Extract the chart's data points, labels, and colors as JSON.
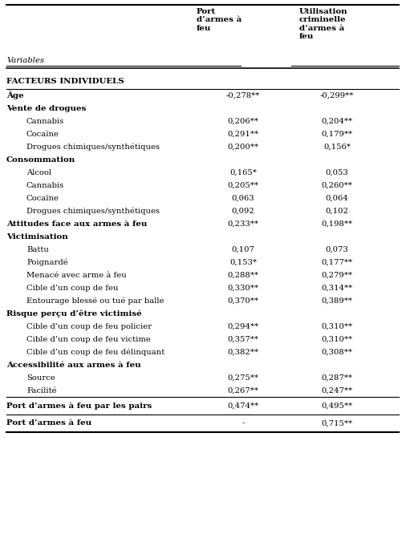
{
  "col1_header": "Port\nd’armes à\nfeu",
  "col2_header": "Utilisation\ncriminelle\nd’armes à\nfeu",
  "var_label": "Variables",
  "bg_color": "#ffffff",
  "text_color": "#000000",
  "line_color": "#000000",
  "rows": [
    {
      "label": "FACTEURS INDIVIDUELS",
      "col1": "",
      "col2": "",
      "style": "section_bold",
      "indent": 0
    },
    {
      "label": "Âge",
      "col1": "-0,278**",
      "col2": "-0,299**",
      "style": "bold",
      "indent": 0
    },
    {
      "label": "Vente de drogues",
      "col1": "",
      "col2": "",
      "style": "bold",
      "indent": 0
    },
    {
      "label": "Cannabis",
      "col1": "0,206**",
      "col2": "0,204**",
      "style": "normal",
      "indent": 1
    },
    {
      "label": "Cocaïne",
      "col1": "0,291**",
      "col2": "0,179**",
      "style": "normal",
      "indent": 1
    },
    {
      "label": "Drogues chimiques/synthétiques",
      "col1": "0,200**",
      "col2": "0,156*",
      "style": "normal",
      "indent": 1
    },
    {
      "label": "Consommation",
      "col1": "",
      "col2": "",
      "style": "bold",
      "indent": 0
    },
    {
      "label": "Alcool",
      "col1": "0,165*",
      "col2": "0,053",
      "style": "normal",
      "indent": 1
    },
    {
      "label": "Cannabis",
      "col1": "0,205**",
      "col2": "0,260**",
      "style": "normal",
      "indent": 1
    },
    {
      "label": "Cocaïne",
      "col1": "0,063",
      "col2": "0,064",
      "style": "normal",
      "indent": 1
    },
    {
      "label": "Drogues chimiques/synthétiques",
      "col1": "0,092",
      "col2": "0,102",
      "style": "normal",
      "indent": 1
    },
    {
      "label": "Attitudes face aux armes à feu",
      "col1": "0,233**",
      "col2": "0,198**",
      "style": "bold",
      "indent": 0
    },
    {
      "label": "Victimisation",
      "col1": "",
      "col2": "",
      "style": "bold",
      "indent": 0
    },
    {
      "label": "Battu",
      "col1": "0,107",
      "col2": "0,073",
      "style": "normal",
      "indent": 1
    },
    {
      "label": "Poignardé",
      "col1": "0,153*",
      "col2": "0,177**",
      "style": "normal",
      "indent": 1
    },
    {
      "label": "Menacé avec arme à feu",
      "col1": "0,288**",
      "col2": "0,279**",
      "style": "normal",
      "indent": 1
    },
    {
      "label": "Cible d’un coup de feu",
      "col1": "0,330**",
      "col2": "0,314**",
      "style": "normal",
      "indent": 1
    },
    {
      "label": "Entourage blessé ou tué par balle",
      "col1": "0,370**",
      "col2": "0,389**",
      "style": "normal",
      "indent": 1
    },
    {
      "label": "Risque perçu d’être victimisé",
      "col1": "",
      "col2": "",
      "style": "bold",
      "indent": 0
    },
    {
      "label": "Cible d’un coup de feu policier",
      "col1": "0,294**",
      "col2": "0,310**",
      "style": "normal",
      "indent": 1
    },
    {
      "label": "Cible d’un coup de feu victime",
      "col1": "0,357**",
      "col2": "0,310**",
      "style": "normal",
      "indent": 1
    },
    {
      "label": "Cible d’un coup de feu délinquant",
      "col1": "0,382**",
      "col2": "0,308**",
      "style": "normal",
      "indent": 1
    },
    {
      "label": "Accessibilité aux armes à feu",
      "col1": "",
      "col2": "",
      "style": "bold",
      "indent": 0
    },
    {
      "label": "Source",
      "col1": "0,275**",
      "col2": "0,287**",
      "style": "normal",
      "indent": 1
    },
    {
      "label": "Facilité",
      "col1": "0,267**",
      "col2": "0,247**",
      "style": "normal",
      "indent": 1
    },
    {
      "label": "Port d’armes à feu par les pairs",
      "col1": "0,474**",
      "col2": "0,495**",
      "style": "bold_standalone",
      "indent": 0
    },
    {
      "label": "Port d’armes à feu",
      "col1": "-",
      "col2": "0,715**",
      "style": "bold_standalone",
      "indent": 0
    }
  ]
}
